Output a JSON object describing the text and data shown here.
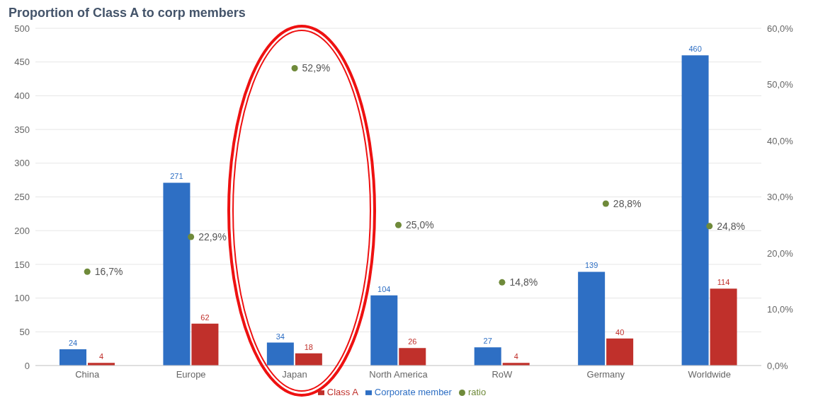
{
  "chart_data": {
    "type": "bar",
    "title": "Proportion of Class A to corp members",
    "categories": [
      "China",
      "Europe",
      "Japan",
      "North America",
      "RoW",
      "Germany",
      "Worldwide"
    ],
    "series": [
      {
        "name": "Corporate member",
        "color": "#2e6fc4",
        "values": [
          24,
          271,
          34,
          104,
          27,
          139,
          460
        ],
        "value_labels": [
          "24",
          "271",
          "34",
          "104",
          "27",
          "139",
          "460"
        ]
      },
      {
        "name": "Class A",
        "color": "#c0302b",
        "values": [
          4,
          62,
          18,
          26,
          4,
          40,
          114
        ],
        "value_labels": [
          "4",
          "62",
          "18",
          "26",
          "4",
          "40",
          "114"
        ]
      },
      {
        "name": "ratio",
        "type": "scatter",
        "axis": "y2",
        "color": "#6f8a3a",
        "values": [
          16.7,
          22.9,
          52.9,
          25.0,
          14.8,
          28.8,
          24.8
        ],
        "value_labels": [
          "16,7%",
          "22,9%",
          "52,9%",
          "25,0%",
          "14,8%",
          "28,8%",
          "24,8%"
        ]
      }
    ],
    "ylim": [
      0,
      500
    ],
    "yticks": [
      0,
      50,
      100,
      150,
      200,
      250,
      300,
      350,
      400,
      450,
      500
    ],
    "y2lim": [
      0,
      60
    ],
    "y2ticks": [
      {
        "value": 0,
        "label": "0,0%"
      },
      {
        "value": 10,
        "label": "10,0%"
      },
      {
        "value": 20,
        "label": "20,0%"
      },
      {
        "value": 30,
        "label": "30,0%"
      },
      {
        "value": 40,
        "label": "40,0%"
      },
      {
        "value": 50,
        "label": "50,0%"
      },
      {
        "value": 60,
        "label": "60,0%"
      }
    ],
    "grid": "y",
    "legend": "bottom",
    "marker": "circle"
  }
}
